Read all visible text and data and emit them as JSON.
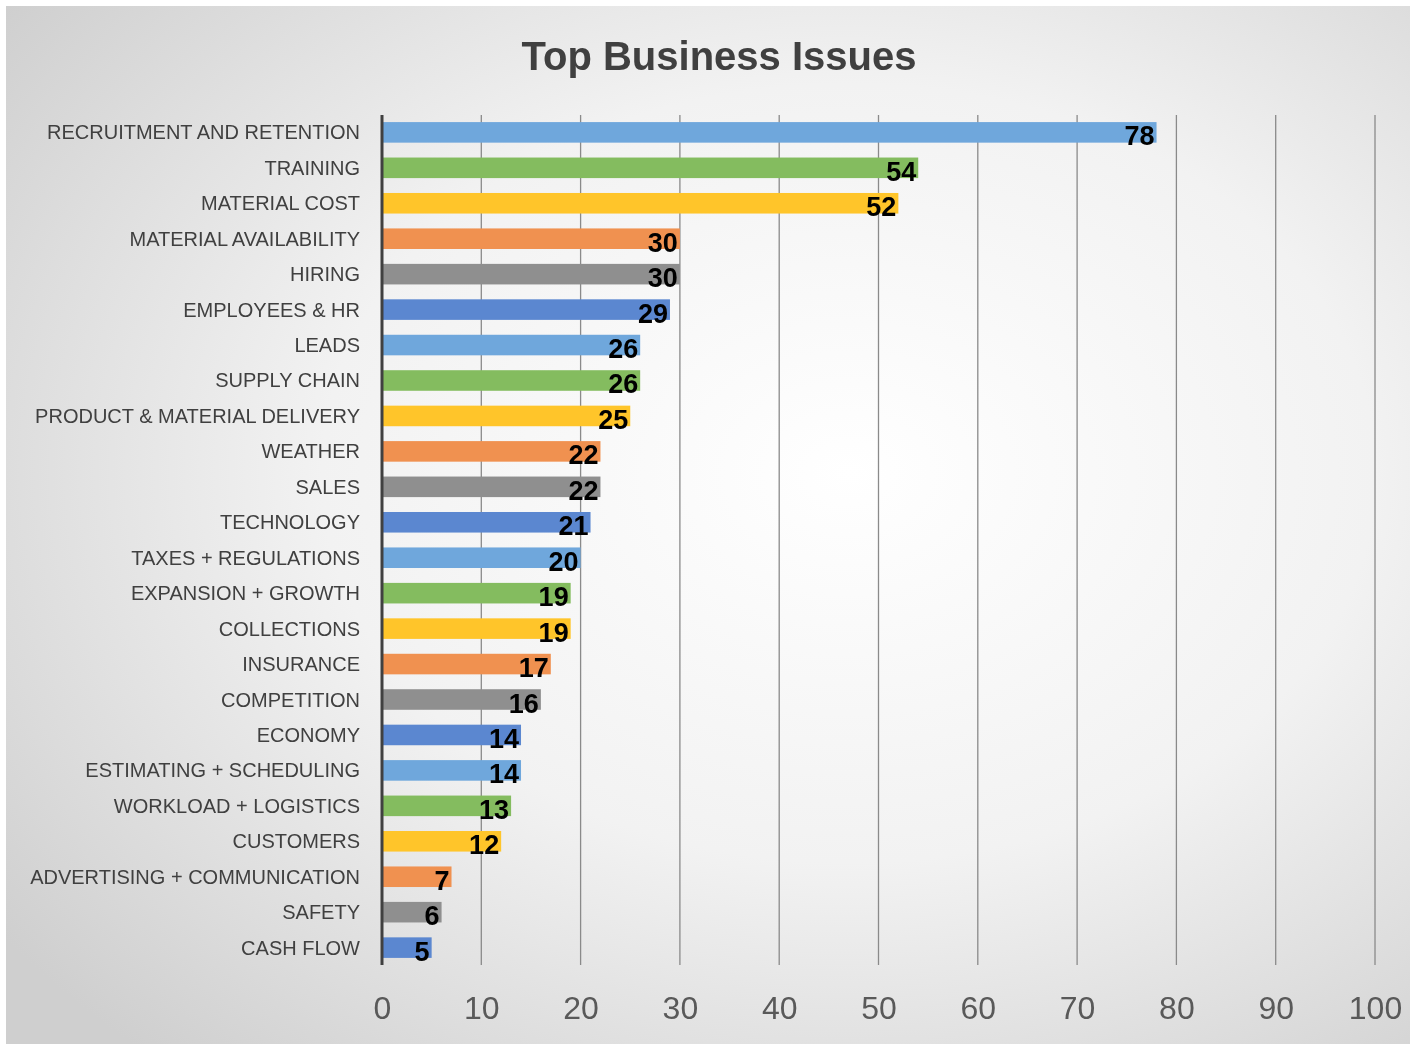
{
  "chart_data": {
    "type": "bar",
    "orientation": "horizontal",
    "title": "Top Business Issues",
    "categories": [
      "RECRUITMENT AND RETENTION",
      "TRAINING",
      "MATERIAL COST",
      "MATERIAL AVAILABILITY",
      "HIRING",
      "EMPLOYEES & HR",
      "LEADS",
      "SUPPLY CHAIN",
      "PRODUCT & MATERIAL DELIVERY",
      "WEATHER",
      "SALES",
      "TECHNOLOGY",
      "TAXES + REGULATIONS",
      "EXPANSION + GROWTH",
      "COLLECTIONS",
      "INSURANCE",
      "COMPETITION",
      "ECONOMY",
      "ESTIMATING + SCHEDULING",
      "WORKLOAD + LOGISTICS",
      "CUSTOMERS",
      "ADVERTISING + COMMUNICATION",
      "SAFETY",
      "CASH FLOW"
    ],
    "values": [
      78,
      54,
      52,
      30,
      30,
      29,
      26,
      26,
      25,
      22,
      22,
      21,
      20,
      19,
      19,
      17,
      16,
      14,
      14,
      13,
      12,
      7,
      6,
      5
    ],
    "colors": [
      "#6fa7dc",
      "#84bc5f",
      "#ffc52a",
      "#f09150",
      "#8f8f8f",
      "#5b87d0",
      "#6fa7dc",
      "#84bc5f",
      "#ffc52a",
      "#f09150",
      "#8f8f8f",
      "#5b87d0",
      "#6fa7dc",
      "#84bc5f",
      "#ffc52a",
      "#f09150",
      "#8f8f8f",
      "#5b87d0",
      "#6fa7dc",
      "#84bc5f",
      "#ffc52a",
      "#f09150",
      "#8f8f8f",
      "#5b87d0"
    ],
    "xlim": [
      0,
      100
    ],
    "xticks": [
      0,
      10,
      20,
      30,
      40,
      50,
      60,
      70,
      80,
      90,
      100
    ],
    "grid": "x",
    "data_labels": true
  }
}
